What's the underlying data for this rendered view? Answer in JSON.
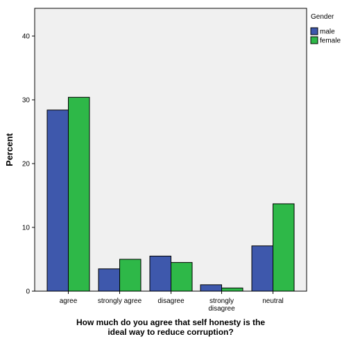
{
  "chart_data": {
    "type": "bar",
    "categories": [
      "agree",
      "strongly agree",
      "disagree",
      "strongly disagree",
      "neutral"
    ],
    "category_lines": [
      [
        "agree"
      ],
      [
        "strongly agree"
      ],
      [
        "disagree"
      ],
      [
        "strongly",
        "disagree"
      ],
      [
        "neutral"
      ]
    ],
    "series": [
      {
        "name": "male",
        "values": [
          28.4,
          3.5,
          5.5,
          1.0,
          7.1
        ],
        "color": "#3e58ac"
      },
      {
        "name": "female",
        "values": [
          30.4,
          5.0,
          4.5,
          0.5,
          13.7
        ],
        "color": "#2eb848"
      }
    ],
    "xlabel": "How much do you agree that self honesty is the ideal way to reduce corruption?",
    "xlabel_lines": [
      "How much do you agree that self honesty is the",
      "ideal way to reduce corruption?"
    ],
    "ylabel": "Percent",
    "ylim": [
      0,
      44
    ],
    "yticks": [
      0,
      10,
      20,
      30,
      40
    ],
    "legend": {
      "title": "Gender",
      "position": "top-right"
    },
    "plot_background": "#f0f0f0",
    "grid": false
  }
}
